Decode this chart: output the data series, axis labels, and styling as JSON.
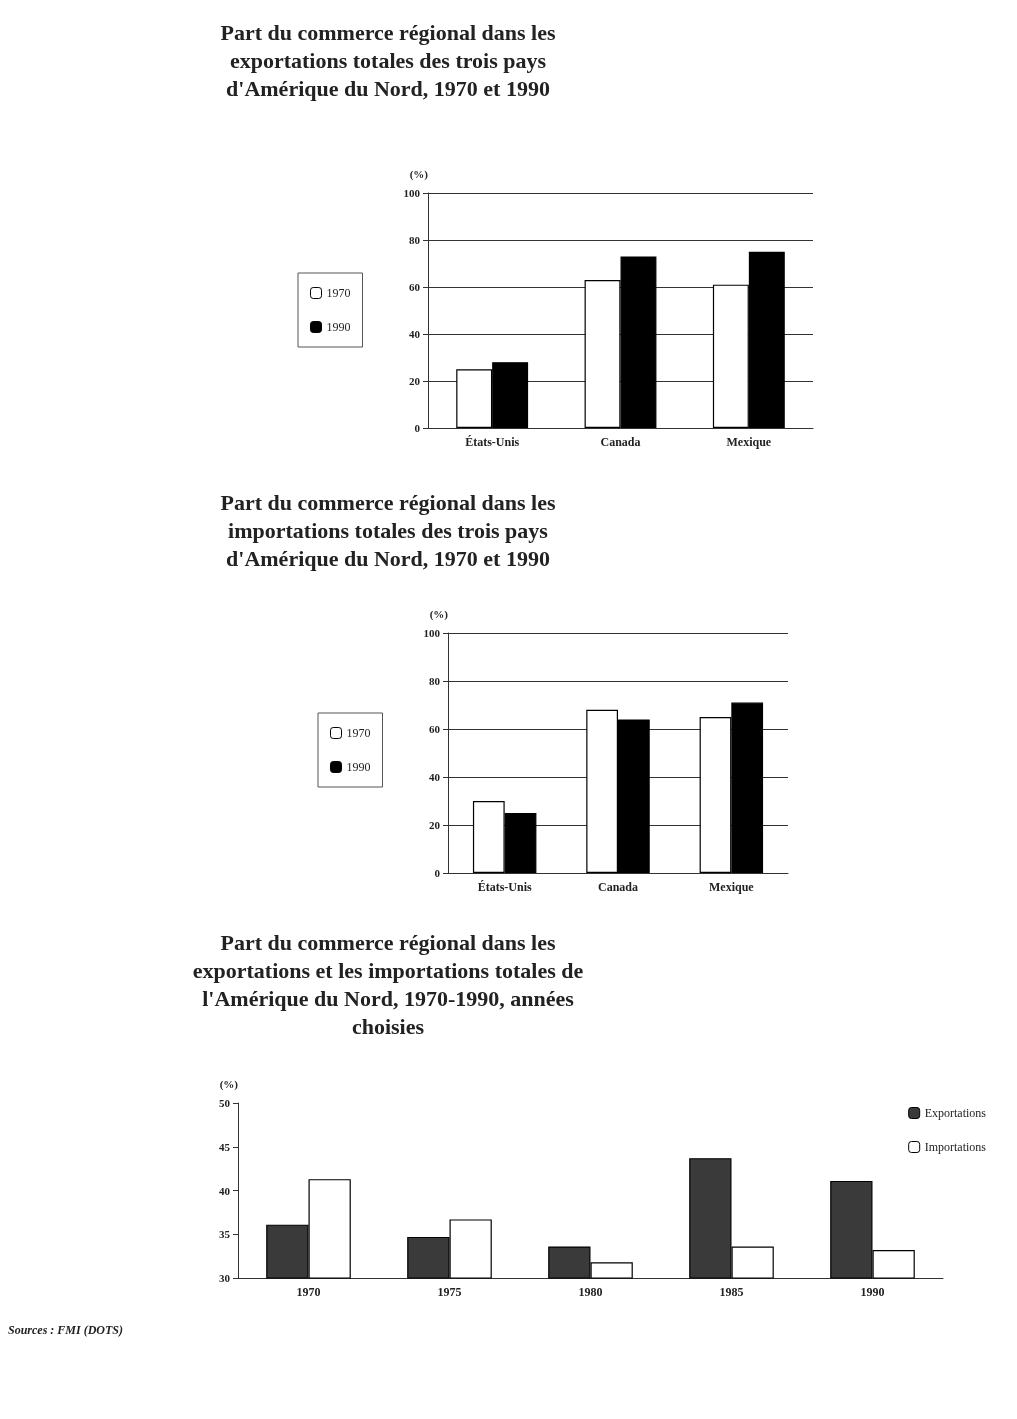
{
  "chart_data": [
    {
      "type": "bar",
      "title": "Part du commerce régional dans les\nexportations totales des trois pays\nd'Amérique du Nord, 1970 et 1990",
      "ylabel": "(%)",
      "categories": [
        "États-Unis",
        "Canada",
        "Mexique"
      ],
      "series": [
        {
          "name": "1970",
          "color": "#ffffff",
          "values": [
            25,
            63,
            61
          ]
        },
        {
          "name": "1990",
          "color": "#000000",
          "values": [
            28,
            73,
            75
          ]
        }
      ],
      "ylim": [
        0,
        100
      ],
      "yticks": [
        0,
        20,
        40,
        60,
        80,
        100
      ],
      "grid": "y",
      "legend": "left"
    },
    {
      "type": "bar",
      "title": "Part du commerce régional dans les\nimportations totales des trois pays\nd'Amérique du Nord, 1970 et 1990",
      "ylabel": "(%)",
      "categories": [
        "États-Unis",
        "Canada",
        "Mexique"
      ],
      "series": [
        {
          "name": "1970",
          "color": "#ffffff",
          "values": [
            30,
            68,
            65
          ]
        },
        {
          "name": "1990",
          "color": "#000000",
          "values": [
            25,
            64,
            71
          ]
        }
      ],
      "ylim": [
        0,
        100
      ],
      "yticks": [
        0,
        20,
        40,
        60,
        80,
        100
      ],
      "grid": "y",
      "legend": "left"
    },
    {
      "type": "bar",
      "title": "Part du commerce régional dans les\nexportations et les importations totales de\nl'Amérique du Nord, 1970-1990, années\nchoisies",
      "ylabel": "(%)",
      "categories": [
        "1970",
        "1975",
        "1980",
        "1985",
        "1990"
      ],
      "series": [
        {
          "name": "Exportations",
          "color": "#3a3a3a",
          "values": [
            36.1,
            34.7,
            33.6,
            43.7,
            41.1
          ]
        },
        {
          "name": "Importations",
          "color": "#ffffff",
          "values": [
            41.3,
            36.7,
            31.8,
            33.6,
            33.2
          ]
        }
      ],
      "ylim": [
        30,
        50
      ],
      "yticks": [
        30,
        35,
        40,
        45,
        50
      ],
      "grid": false,
      "legend": "top right",
      "annotations": [
        "Sources : FMI (DOTS)"
      ]
    }
  ]
}
